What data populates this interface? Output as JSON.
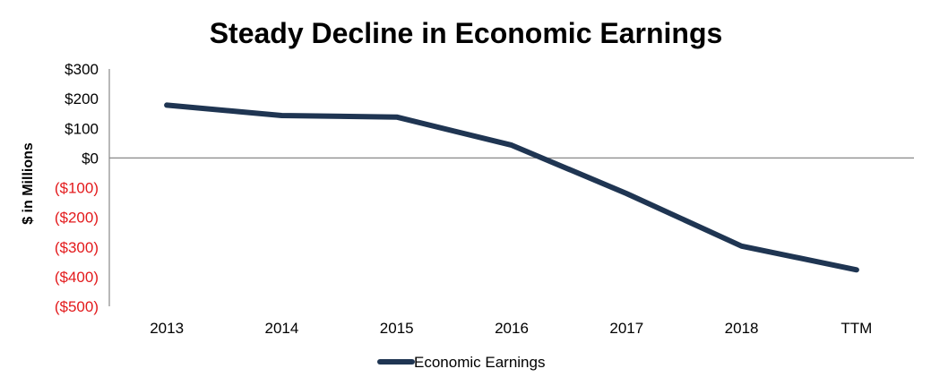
{
  "chart_data": {
    "type": "line",
    "title": "Steady Decline in Economic Earnings",
    "xlabel": "",
    "ylabel": "$ in Millions",
    "categories": [
      "2013",
      "2014",
      "2015",
      "2016",
      "2017",
      "2018",
      "TTM"
    ],
    "series": [
      {
        "name": "Economic Earnings",
        "values": [
          178,
          143,
          138,
          43,
          -120,
          -297,
          -377
        ],
        "color": "#1f3552"
      }
    ],
    "ylim": [
      -500,
      300
    ],
    "yticks": [
      300,
      200,
      100,
      0,
      -100,
      -200,
      -300,
      -400,
      -500
    ],
    "ytick_labels": [
      "$300",
      "$200",
      "$100",
      "$0",
      "($100)",
      "($200)",
      "($300)",
      "($400)",
      "($500)"
    ],
    "negative_label_color": "#e31a1c",
    "positive_label_color": "#000000",
    "grid": false,
    "legend_position": "bottom-center"
  }
}
